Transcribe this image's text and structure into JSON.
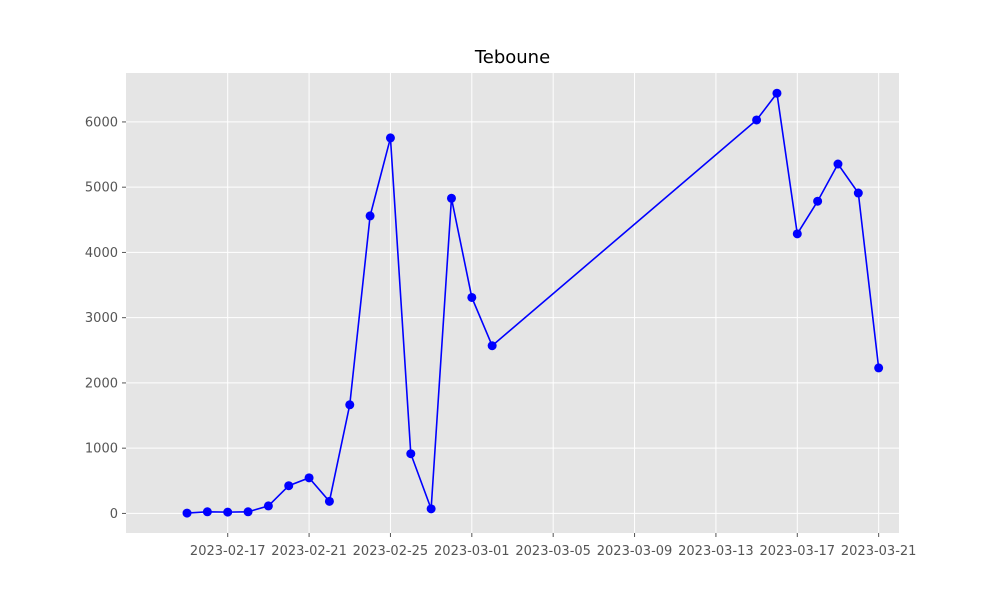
{
  "chart_data": {
    "type": "line",
    "title": "Teboune",
    "xlabel": "",
    "ylabel": "",
    "x_type": "date",
    "xlim": [
      "2023-02-12",
      "2023-03-22"
    ],
    "ylim": [
      -300,
      6750
    ],
    "grid": true,
    "x_ticks": [
      "2023-02-17",
      "2023-02-21",
      "2023-02-25",
      "2023-03-01",
      "2023-03-05",
      "2023-03-09",
      "2023-03-13",
      "2023-03-17",
      "2023-03-21"
    ],
    "y_ticks": [
      0,
      1000,
      2000,
      3000,
      4000,
      5000,
      6000
    ],
    "series": [
      {
        "color": "#0000ff",
        "marker": "circle",
        "points": [
          {
            "x": "2023-02-15",
            "y": 5
          },
          {
            "x": "2023-02-16",
            "y": 25
          },
          {
            "x": "2023-02-17",
            "y": 20
          },
          {
            "x": "2023-02-18",
            "y": 25
          },
          {
            "x": "2023-02-19",
            "y": 115
          },
          {
            "x": "2023-02-20",
            "y": 425
          },
          {
            "x": "2023-02-21",
            "y": 545
          },
          {
            "x": "2023-02-22",
            "y": 185
          },
          {
            "x": "2023-02-23",
            "y": 1665
          },
          {
            "x": "2023-02-24",
            "y": 4560
          },
          {
            "x": "2023-02-25",
            "y": 5755
          },
          {
            "x": "2023-02-26",
            "y": 915
          },
          {
            "x": "2023-02-27",
            "y": 70
          },
          {
            "x": "2023-02-28",
            "y": 4830
          },
          {
            "x": "2023-03-01",
            "y": 3310
          },
          {
            "x": "2023-03-02",
            "y": 2570
          },
          {
            "x": "2023-03-15",
            "y": 6030
          },
          {
            "x": "2023-03-16",
            "y": 6440
          },
          {
            "x": "2023-03-17",
            "y": 4285
          },
          {
            "x": "2023-03-18",
            "y": 4785
          },
          {
            "x": "2023-03-19",
            "y": 5355
          },
          {
            "x": "2023-03-20",
            "y": 4910
          },
          {
            "x": "2023-03-21",
            "y": 2230
          }
        ]
      }
    ],
    "colors": {
      "plot_background": "#e5e5e5",
      "grid": "#ffffff",
      "line": "#0000ff",
      "tick_text": "#555555",
      "title_text": "#000000"
    }
  }
}
